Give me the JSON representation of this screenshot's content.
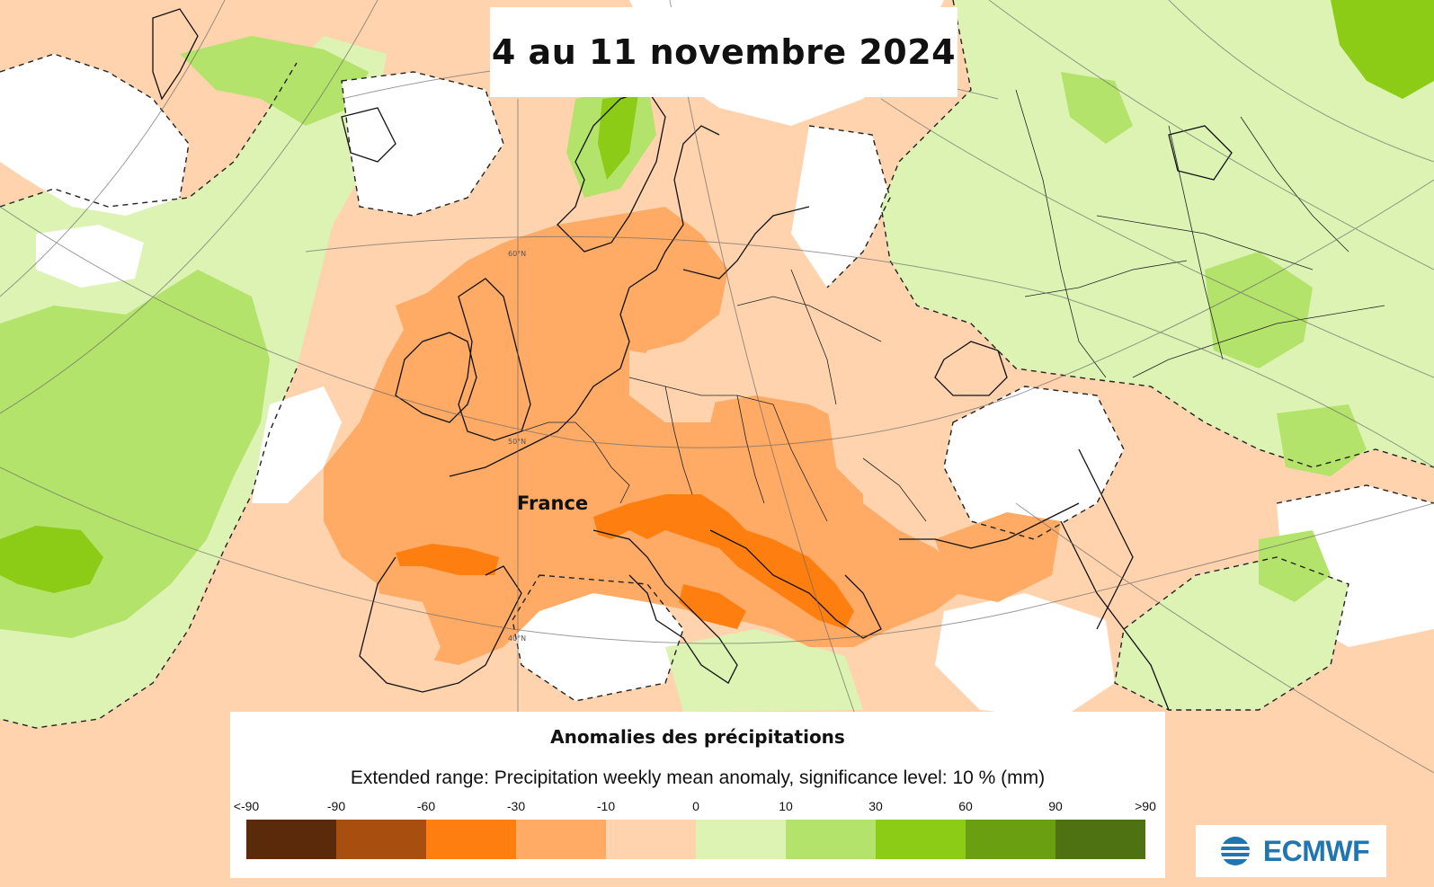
{
  "title": "4 au 11 novembre 2024",
  "map_label": "France",
  "lat_labels": [
    "60°N",
    "50°N",
    "40°N"
  ],
  "legend": {
    "title": "Anomalies des précipitations",
    "subtitle": "Extended range: Precipitation weekly mean anomaly, significance level: 10 % (mm)",
    "ticks": [
      "<-90",
      "-90",
      "-60",
      "-30",
      "-10",
      "0",
      "10",
      "30",
      "60",
      "90",
      ">90"
    ],
    "colors": [
      "#5a2a0a",
      "#a84f10",
      "#ff7e10",
      "#ffab66",
      "#ffd3ad",
      "#dcf3b4",
      "#b3e36a",
      "#8ccc17",
      "#6a9f12",
      "#4e7212"
    ]
  },
  "palette": {
    "none": "#ffffff",
    "dry_light": "#ffd3ad",
    "dry_mid": "#ffab66",
    "dry_strong": "#ff7e10",
    "wet_light": "#dcf3b4",
    "wet_mid": "#b3e36a",
    "wet_strong": "#8ccc17"
  },
  "logo": {
    "text": "ECMWF",
    "color": "#1f76b0"
  }
}
